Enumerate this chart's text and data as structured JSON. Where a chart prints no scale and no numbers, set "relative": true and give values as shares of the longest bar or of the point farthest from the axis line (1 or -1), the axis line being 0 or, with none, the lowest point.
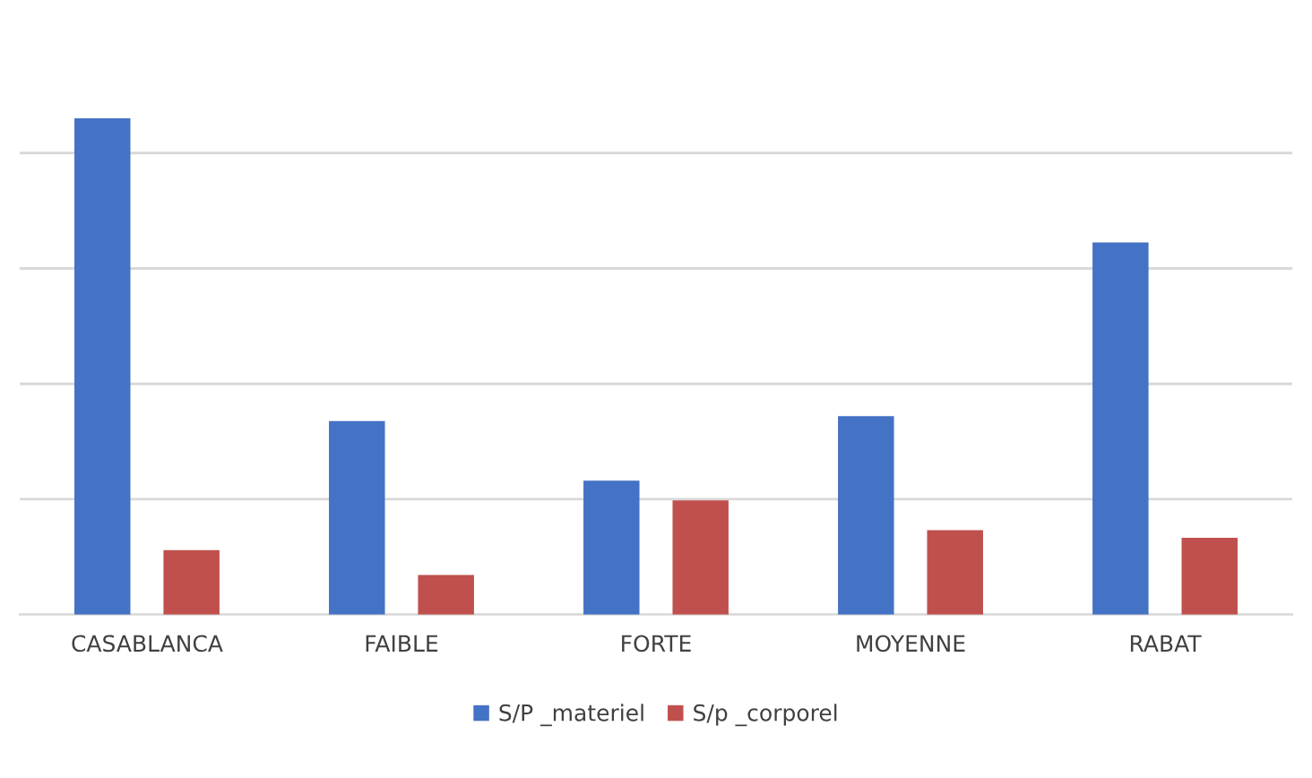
{
  "chart_data": {
    "type": "bar",
    "relative": true,
    "categories": [
      "CASABLANCA",
      "FAIBLE",
      "FORTE",
      "MOYENNE",
      "RABAT"
    ],
    "series": [
      {
        "name": "S/P _materiel",
        "color": "#4472c4",
        "values": [
          1,
          0.39,
          0.27,
          0.4,
          0.75
        ]
      },
      {
        "name": "S/p _corporel",
        "color": "#c0504d",
        "values": [
          0.13,
          0.08,
          0.23,
          0.17,
          0.155
        ]
      }
    ],
    "grid": "y",
    "legend": "bottom"
  }
}
